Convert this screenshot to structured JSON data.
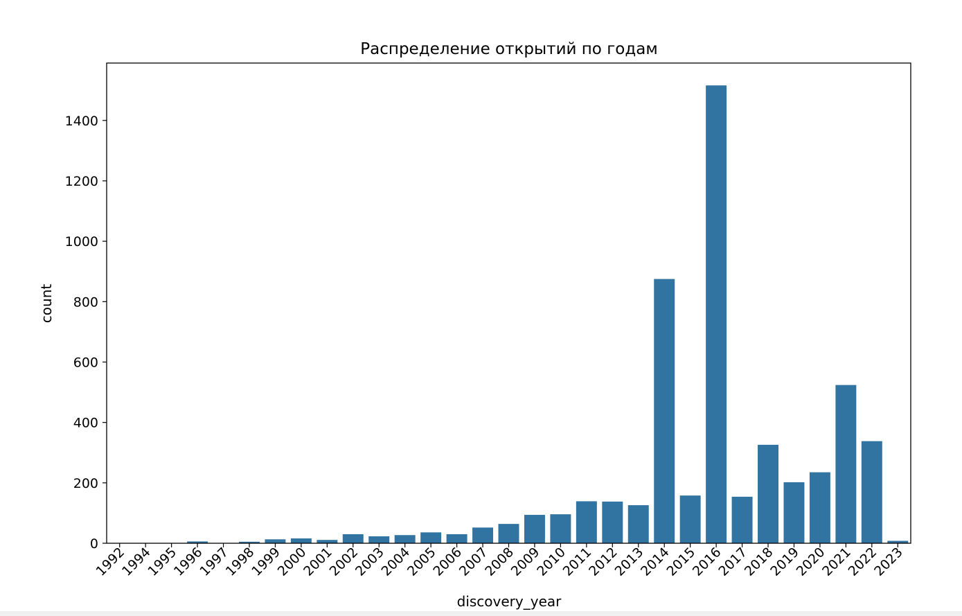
{
  "chart_data": {
    "type": "bar",
    "title": "Распределение открытий по годам",
    "xlabel": "discovery_year",
    "ylabel": "count",
    "categories": [
      "1992",
      "1994",
      "1995",
      "1996",
      "1997",
      "1998",
      "1999",
      "2000",
      "2001",
      "2002",
      "2003",
      "2004",
      "2005",
      "2006",
      "2007",
      "2008",
      "2009",
      "2010",
      "2011",
      "2012",
      "2013",
      "2014",
      "2015",
      "2016",
      "2017",
      "2018",
      "2019",
      "2020",
      "2021",
      "2022",
      "2023"
    ],
    "values": [
      1,
      1,
      1,
      6,
      1,
      5,
      13,
      16,
      11,
      30,
      23,
      27,
      36,
      30,
      52,
      64,
      94,
      96,
      139,
      138,
      126,
      875,
      158,
      1516,
      154,
      326,
      202,
      235,
      524,
      338,
      8
    ],
    "ylim": [
      0,
      1590
    ],
    "yticks": [
      0,
      200,
      400,
      600,
      800,
      1000,
      1200,
      1400
    ],
    "grid": false,
    "bar_color": "#3274a1",
    "tick_rotation": -45
  }
}
